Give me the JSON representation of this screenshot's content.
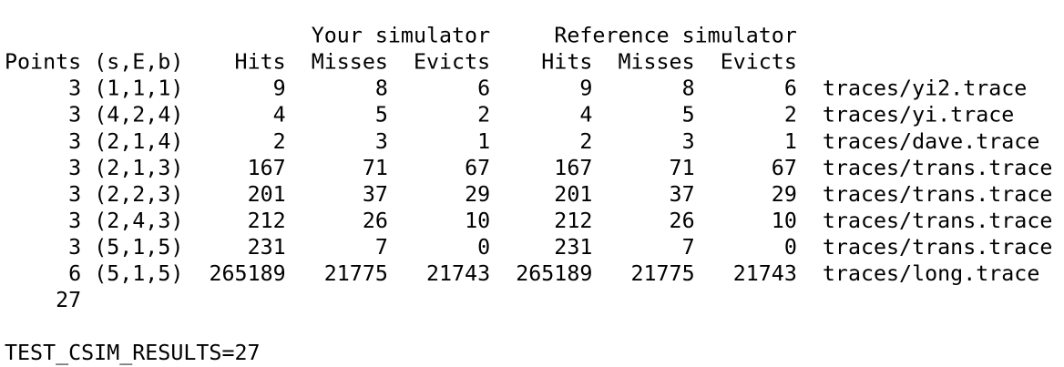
{
  "header": {
    "groups": [
      "Your simulator",
      "Reference simulator"
    ],
    "columns": [
      "Points (s,E,b)",
      "Hits",
      "Misses",
      "Evicts",
      "Hits",
      "Misses",
      "Evicts"
    ]
  },
  "rows": [
    {
      "points": 3,
      "params": "(1,1,1)",
      "values": [
        9,
        8,
        6,
        9,
        8,
        6
      ],
      "trace": "traces/yi2.trace"
    },
    {
      "points": 3,
      "params": "(4,2,4)",
      "values": [
        4,
        5,
        2,
        4,
        5,
        2
      ],
      "trace": "traces/yi.trace"
    },
    {
      "points": 3,
      "params": "(2,1,4)",
      "values": [
        2,
        3,
        1,
        2,
        3,
        1
      ],
      "trace": "traces/dave.trace"
    },
    {
      "points": 3,
      "params": "(2,1,3)",
      "values": [
        167,
        71,
        67,
        167,
        71,
        67
      ],
      "trace": "traces/trans.trace"
    },
    {
      "points": 3,
      "params": "(2,2,3)",
      "values": [
        201,
        37,
        29,
        201,
        37,
        29
      ],
      "trace": "traces/trans.trace"
    },
    {
      "points": 3,
      "params": "(2,4,3)",
      "values": [
        212,
        26,
        10,
        212,
        26,
        10
      ],
      "trace": "traces/trans.trace"
    },
    {
      "points": 3,
      "params": "(5,1,5)",
      "values": [
        231,
        7,
        0,
        231,
        7,
        0
      ],
      "trace": "traces/trans.trace"
    },
    {
      "points": 6,
      "params": "(5,1,5)",
      "values": [
        265189,
        21775,
        21743,
        265189,
        21775,
        21743
      ],
      "trace": "traces/long.trace"
    }
  ],
  "total": 27,
  "result": "TEST_CSIM_RESULTS=27"
}
